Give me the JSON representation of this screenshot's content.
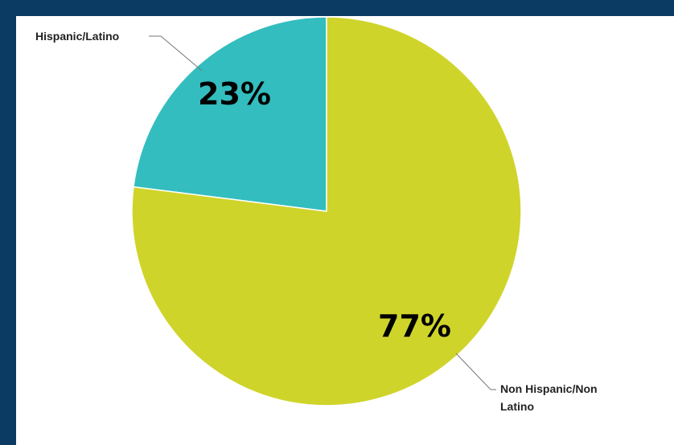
{
  "chart_data": {
    "type": "pie",
    "slices": [
      {
        "label": "Hispanic/Latino",
        "value": 23,
        "value_label": "23%",
        "color": "#33bdbf"
      },
      {
        "label_lines": [
          "Non Hispanic/Non",
          "Latino"
        ],
        "value": 77,
        "value_label": "77%",
        "color": "#cfd42a"
      }
    ],
    "start_angle": "top (12 o'clock), slices run counter-clockwise",
    "background": "#ffffff",
    "frame_color": "#0b3a63"
  }
}
